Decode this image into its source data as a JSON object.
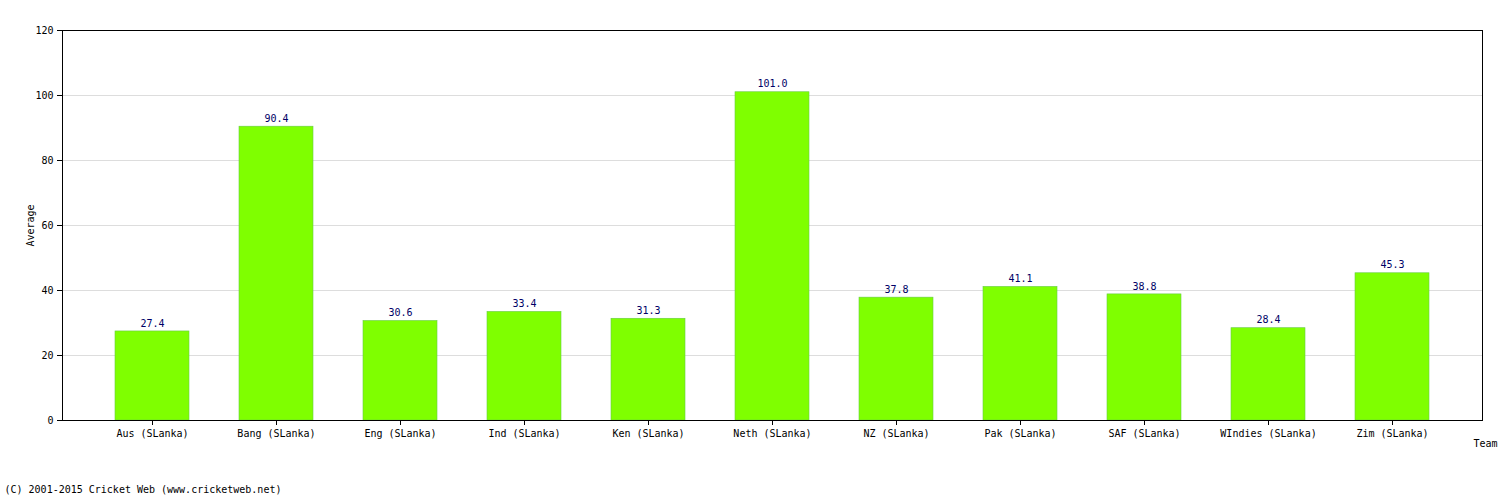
{
  "chart_data": {
    "type": "bar",
    "categories": [
      "Aus (SLanka)",
      "Bang (SLanka)",
      "Eng (SLanka)",
      "Ind (SLanka)",
      "Ken (SLanka)",
      "Neth (SLanka)",
      "NZ (SLanka)",
      "Pak (SLanka)",
      "SAF (SLanka)",
      "WIndies (SLanka)",
      "Zim (SLanka)"
    ],
    "values": [
      27.4,
      90.4,
      30.6,
      33.4,
      31.3,
      101.0,
      37.8,
      41.1,
      38.8,
      28.4,
      45.3
    ],
    "value_labels": [
      "27.4",
      "90.4",
      "30.6",
      "33.4",
      "31.3",
      "101.0",
      "37.8",
      "41.1",
      "38.8",
      "28.4",
      "45.3"
    ],
    "data_labels": true,
    "color": "#7fff00",
    "x_label": "Team",
    "y_label": "Average",
    "ylim": [
      0,
      120
    ],
    "yticks": [
      0,
      20,
      40,
      60,
      80,
      100,
      120
    ],
    "grid": true,
    "caption": "(C) 2001-2015 Cricket Web (www.cricketweb.net)"
  }
}
